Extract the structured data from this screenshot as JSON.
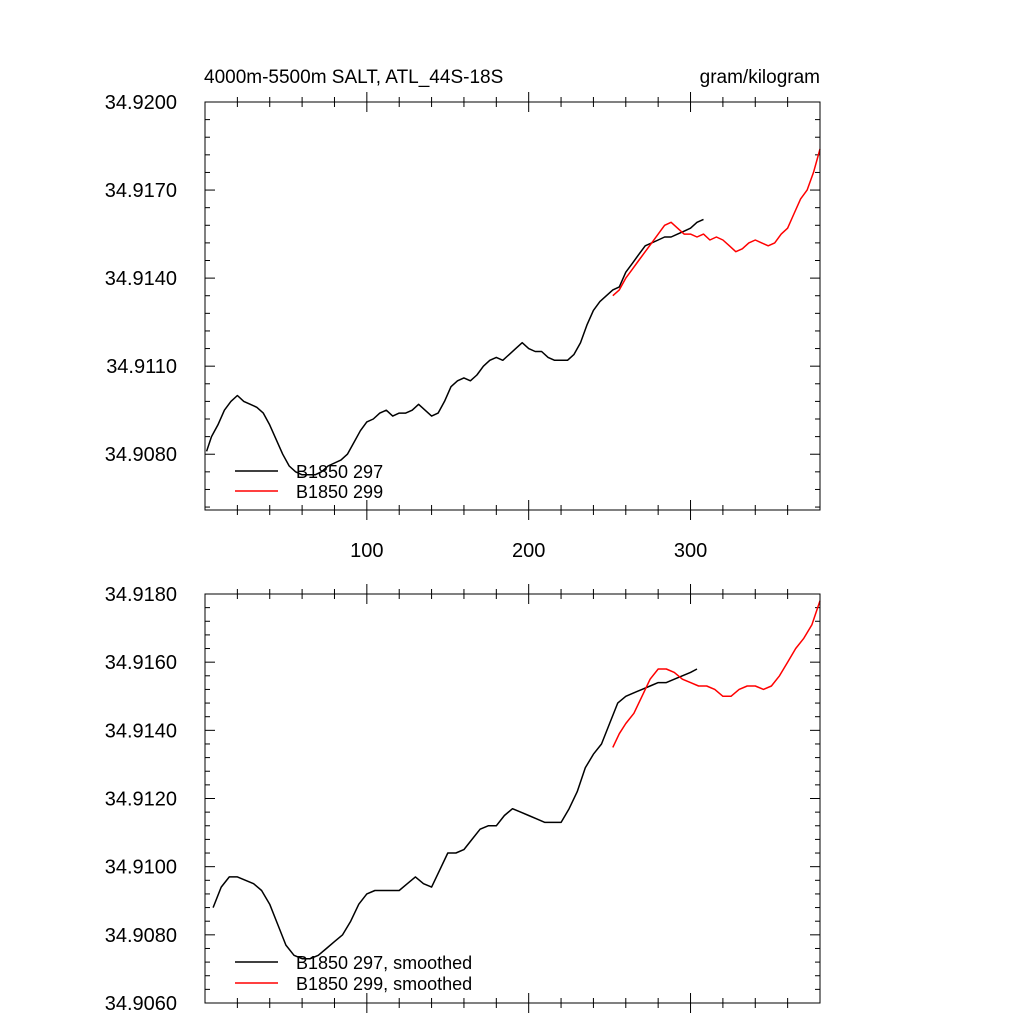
{
  "chart_data": [
    {
      "type": "line",
      "title_left": "4000m-5500m SALT, ATL_44S-18S",
      "title_right": "gram/kilogram",
      "xlim": [
        0,
        380
      ],
      "ylim": [
        34.9061,
        34.92
      ],
      "y_ticks": [
        34.908,
        34.911,
        34.914,
        34.917,
        34.92
      ],
      "y_tick_labels": [
        "34.9080",
        "34.9110",
        "34.9140",
        "34.9170",
        "34.9200"
      ],
      "x_ticks": [
        100,
        200,
        300
      ],
      "x_tick_labels": [
        "100",
        "200",
        "300"
      ],
      "series": [
        {
          "name": "B1850 297",
          "color": "#000000",
          "x": [
            1,
            4,
            8,
            12,
            16,
            20,
            24,
            28,
            32,
            36,
            40,
            44,
            48,
            52,
            56,
            60,
            64,
            68,
            72,
            76,
            80,
            84,
            88,
            92,
            96,
            100,
            104,
            108,
            112,
            116,
            120,
            124,
            128,
            132,
            136,
            140,
            144,
            148,
            152,
            156,
            160,
            164,
            168,
            172,
            176,
            180,
            184,
            188,
            192,
            196,
            200,
            204,
            208,
            212,
            216,
            220,
            224,
            228,
            232,
            236,
            240,
            244,
            248,
            252,
            256,
            260,
            264,
            268,
            272,
            276,
            280,
            284,
            288,
            292,
            296,
            300,
            304,
            308
          ],
          "y": [
            34.9081,
            34.9086,
            34.909,
            34.9095,
            34.9098,
            34.91,
            34.9098,
            34.9097,
            34.9096,
            34.9094,
            34.909,
            34.9085,
            34.908,
            34.9076,
            34.9074,
            34.9073,
            34.9073,
            34.9073,
            34.9074,
            34.9076,
            34.9077,
            34.9078,
            34.908,
            34.9084,
            34.9088,
            34.9091,
            34.9092,
            34.9094,
            34.9095,
            34.9093,
            34.9094,
            34.9094,
            34.9095,
            34.9097,
            34.9095,
            34.9093,
            34.9094,
            34.9098,
            34.9103,
            34.9105,
            34.9106,
            34.9105,
            34.9107,
            34.911,
            34.9112,
            34.9113,
            34.9112,
            34.9114,
            34.9116,
            34.9118,
            34.9116,
            34.9115,
            34.9115,
            34.9113,
            34.9112,
            34.9112,
            34.9112,
            34.9114,
            34.9118,
            34.9124,
            34.9129,
            34.9132,
            34.9134,
            34.9136,
            34.9137,
            34.9142,
            34.9145,
            34.9148,
            34.9151,
            34.9152,
            34.9153,
            34.9154,
            34.9154,
            34.9155,
            34.9156,
            34.9157,
            34.9159,
            34.916
          ]
        },
        {
          "name": "B1850 299",
          "color": "#ff0000",
          "x": [
            252,
            256,
            260,
            264,
            268,
            272,
            276,
            280,
            284,
            288,
            292,
            296,
            300,
            304,
            308,
            312,
            316,
            320,
            324,
            328,
            332,
            336,
            340,
            344,
            348,
            352,
            356,
            360,
            364,
            368,
            372,
            376,
            380
          ],
          "y": [
            34.9134,
            34.9136,
            34.914,
            34.9143,
            34.9146,
            34.9149,
            34.9152,
            34.9155,
            34.9158,
            34.9159,
            34.9157,
            34.9155,
            34.9155,
            34.9154,
            34.9155,
            34.9153,
            34.9154,
            34.9153,
            34.9151,
            34.9149,
            34.915,
            34.9152,
            34.9153,
            34.9152,
            34.9151,
            34.9152,
            34.9155,
            34.9157,
            34.9162,
            34.9167,
            34.917,
            34.9176,
            34.9184
          ]
        }
      ],
      "legend_entries": [
        "B1850 297",
        "B1850 299"
      ],
      "legend_position": "bottom-left"
    },
    {
      "type": "line",
      "xlim": [
        0,
        380
      ],
      "ylim": [
        34.906,
        34.918
      ],
      "y_ticks": [
        34.906,
        34.908,
        34.91,
        34.912,
        34.914,
        34.916,
        34.918
      ],
      "y_tick_labels": [
        "34.9060",
        "34.9080",
        "34.9100",
        "34.9120",
        "34.9140",
        "34.9160",
        "34.9180"
      ],
      "x_ticks": [
        100,
        200,
        300
      ],
      "series": [
        {
          "name": "B1850 297, smoothed",
          "color": "#000000",
          "x": [
            5,
            10,
            15,
            20,
            25,
            30,
            35,
            40,
            45,
            50,
            55,
            60,
            65,
            70,
            75,
            80,
            85,
            90,
            95,
            100,
            105,
            110,
            115,
            120,
            125,
            130,
            135,
            140,
            145,
            150,
            155,
            160,
            165,
            170,
            175,
            180,
            185,
            190,
            195,
            200,
            205,
            210,
            215,
            220,
            225,
            230,
            235,
            240,
            245,
            250,
            255,
            260,
            265,
            270,
            275,
            280,
            285,
            290,
            295,
            300,
            304
          ],
          "y": [
            34.9088,
            34.9094,
            34.9097,
            34.9097,
            34.9096,
            34.9095,
            34.9093,
            34.9089,
            34.9083,
            34.9077,
            34.9074,
            34.9073,
            34.9073,
            34.9074,
            34.9076,
            34.9078,
            34.908,
            34.9084,
            34.9089,
            34.9092,
            34.9093,
            34.9093,
            34.9093,
            34.9093,
            34.9095,
            34.9097,
            34.9095,
            34.9094,
            34.9099,
            34.9104,
            34.9104,
            34.9105,
            34.9108,
            34.9111,
            34.9112,
            34.9112,
            34.9115,
            34.9117,
            34.9116,
            34.9115,
            34.9114,
            34.9113,
            34.9113,
            34.9113,
            34.9117,
            34.9122,
            34.9129,
            34.9133,
            34.9136,
            34.9142,
            34.9148,
            34.915,
            34.9151,
            34.9152,
            34.9153,
            34.9154,
            34.9154,
            34.9155,
            34.9156,
            34.9157,
            34.9158
          ]
        },
        {
          "name": "B1850 299, smoothed",
          "color": "#ff0000",
          "x": [
            252,
            256,
            260,
            265,
            270,
            275,
            280,
            285,
            290,
            295,
            300,
            305,
            310,
            315,
            320,
            325,
            330,
            335,
            340,
            345,
            350,
            355,
            360,
            365,
            370,
            375,
            380
          ],
          "y": [
            34.9135,
            34.9139,
            34.9142,
            34.9145,
            34.915,
            34.9155,
            34.9158,
            34.9158,
            34.9157,
            34.9155,
            34.9154,
            34.9153,
            34.9153,
            34.9152,
            34.915,
            34.915,
            34.9152,
            34.9153,
            34.9153,
            34.9152,
            34.9153,
            34.9156,
            34.916,
            34.9164,
            34.9167,
            34.9171,
            34.9178
          ]
        }
      ],
      "legend_entries": [
        "B1850 297, smoothed",
        "B1850 299, smoothed"
      ],
      "legend_position": "bottom-left"
    }
  ]
}
